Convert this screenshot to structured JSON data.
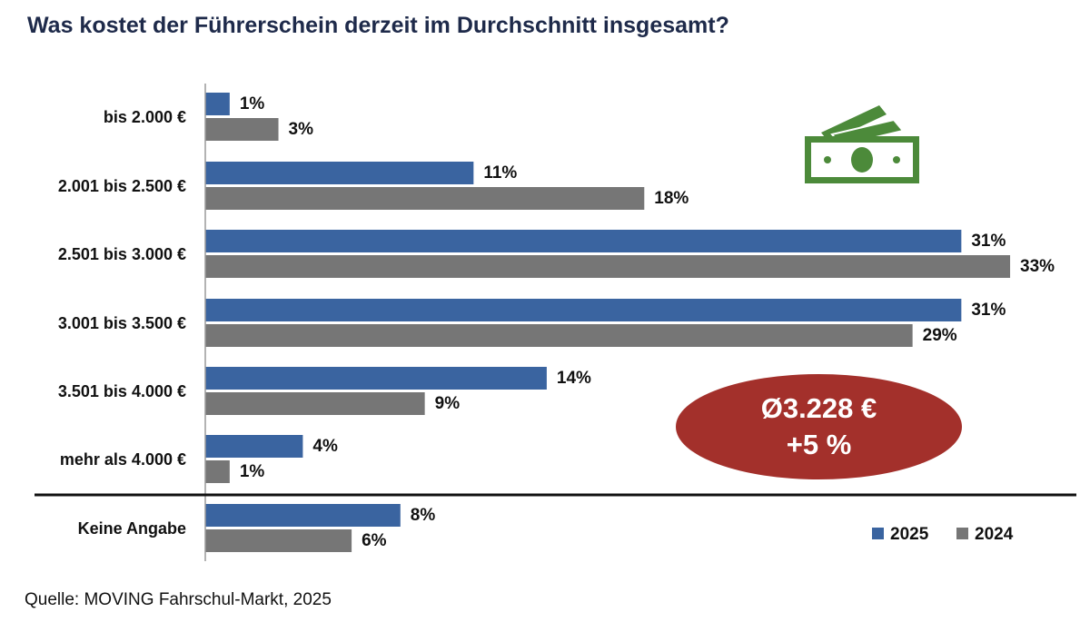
{
  "title": "Was kostet der Führerschein derzeit im Durchschnitt insgesamt?",
  "source": "Quelle: MOVING Fahrschul-Markt, 2025",
  "badge": {
    "average": "Ø3.228 €",
    "change": "+5 %"
  },
  "colors": {
    "2025": "#3a64a0",
    "2024": "#767676",
    "badge": "#a3302b",
    "icon": "#4c8a3a"
  },
  "icon": "money-bills-icon",
  "chart_data": {
    "type": "bar",
    "orientation": "horizontal",
    "title": "Was kostet der Führerschein derzeit im Durchschnitt insgesamt?",
    "categories": [
      "bis 2.000 €",
      "2.001 bis 2.500 €",
      "2.501 bis 3.000 €",
      "3.001 bis 3.500 €",
      "3.501 bis 4.000 €",
      "mehr als 4.000 €",
      "Keine Angabe"
    ],
    "series": [
      {
        "name": "2025",
        "values": [
          1,
          11,
          31,
          31,
          14,
          4,
          8
        ]
      },
      {
        "name": "2024",
        "values": [
          3,
          18,
          33,
          29,
          9,
          1,
          6
        ]
      }
    ],
    "value_labels": [
      [
        "1%",
        "11%",
        "31%",
        "31%",
        "14%",
        "4%",
        "8%"
      ],
      [
        "3%",
        "18%",
        "33%",
        "29%",
        "9%",
        "1%",
        "6%"
      ]
    ],
    "unit": "%",
    "xlim": [
      0,
      33
    ],
    "legend": "bottom-right",
    "grid": false
  }
}
